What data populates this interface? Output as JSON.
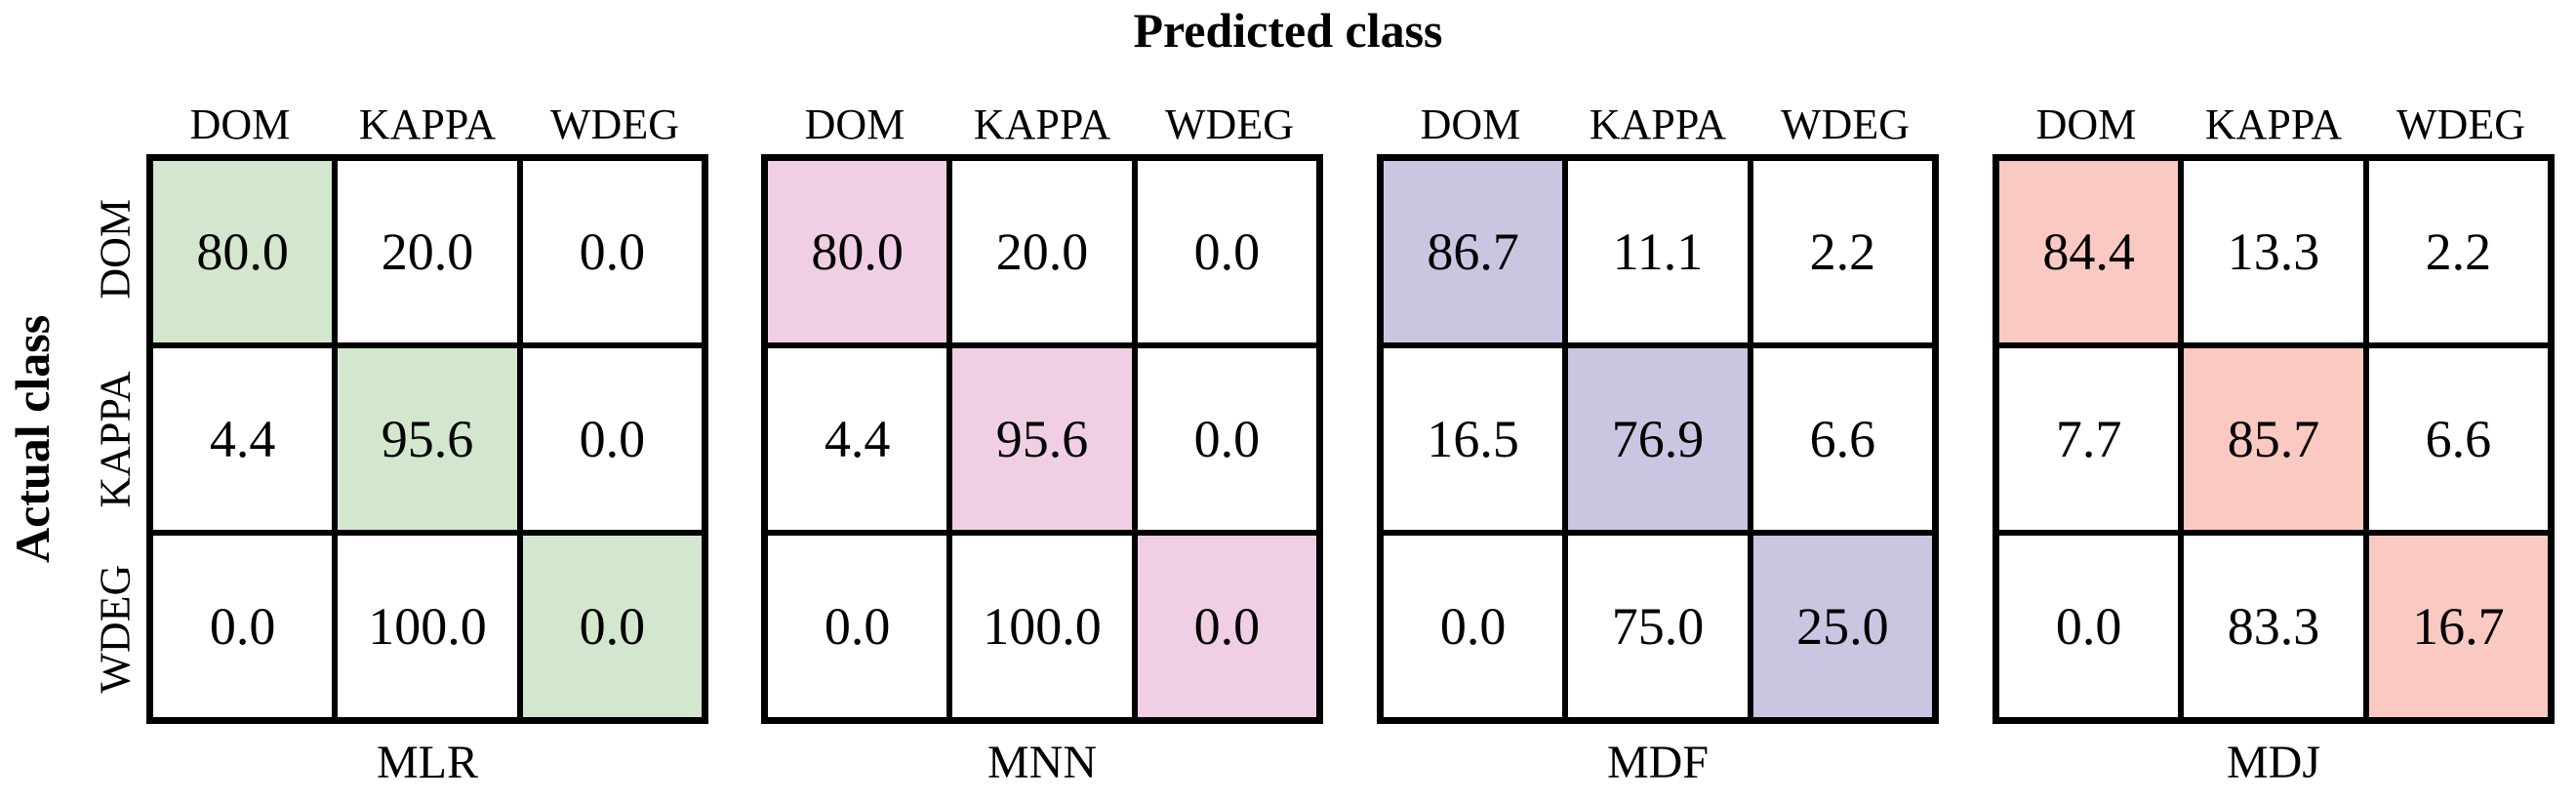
{
  "title": "Predicted class",
  "y_axis_label": "Actual class",
  "classes": [
    "DOM",
    "KAPPA",
    "WDEG"
  ],
  "colors": {
    "grid_line": "#000000",
    "cell_background": "#ffffff",
    "text": "#000000",
    "mlr_diagonal": "#d2e7cd",
    "mnn_diagonal": "#f0cfe4",
    "mdf_diagonal": "#cac6e2",
    "mdj_diagonal": "#fac9c2"
  },
  "chart_data": [
    {
      "type": "heatmap",
      "name": "MLR",
      "x_tick_labels": [
        "DOM",
        "KAPPA",
        "WDEG"
      ],
      "y_tick_labels": [
        "DOM",
        "KAPPA",
        "WDEG"
      ],
      "diagonal_color": "#d2e7cd",
      "values": [
        [
          80.0,
          20.0,
          0.0
        ],
        [
          4.4,
          95.6,
          0.0
        ],
        [
          0.0,
          100.0,
          0.0
        ]
      ],
      "value_decimals": 1
    },
    {
      "type": "heatmap",
      "name": "MNN",
      "x_tick_labels": [
        "DOM",
        "KAPPA",
        "WDEG"
      ],
      "y_tick_labels": [
        "DOM",
        "KAPPA",
        "WDEG"
      ],
      "diagonal_color": "#f0cfe4",
      "values": [
        [
          80.0,
          20.0,
          0.0
        ],
        [
          4.4,
          95.6,
          0.0
        ],
        [
          0.0,
          100.0,
          0.0
        ]
      ],
      "value_decimals": 1
    },
    {
      "type": "heatmap",
      "name": "MDF",
      "x_tick_labels": [
        "DOM",
        "KAPPA",
        "WDEG"
      ],
      "y_tick_labels": [
        "DOM",
        "KAPPA",
        "WDEG"
      ],
      "diagonal_color": "#cac6e2",
      "values": [
        [
          86.7,
          11.1,
          2.2
        ],
        [
          16.5,
          76.9,
          6.6
        ],
        [
          0.0,
          75.0,
          25.0
        ]
      ],
      "value_decimals": 1
    },
    {
      "type": "heatmap",
      "name": "MDJ",
      "x_tick_labels": [
        "DOM",
        "KAPPA",
        "WDEG"
      ],
      "y_tick_labels": [
        "DOM",
        "KAPPA",
        "WDEG"
      ],
      "diagonal_color": "#fac9c2",
      "values": [
        [
          84.4,
          13.3,
          2.2
        ],
        [
          7.7,
          85.7,
          6.6
        ],
        [
          0.0,
          83.3,
          16.7
        ]
      ],
      "value_decimals": 1
    }
  ]
}
